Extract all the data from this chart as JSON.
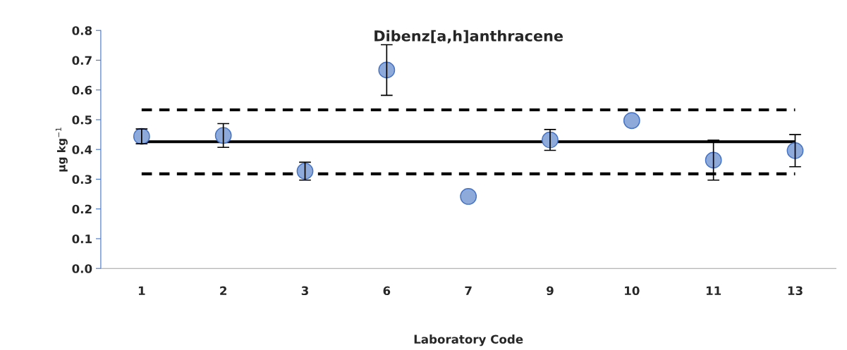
{
  "chart_data": {
    "type": "scatter",
    "title": "Dibenz[a,h]anthracene",
    "xlabel": "Laboratory Code",
    "ylabel": "μg kg$^{−1}$",
    "categories": [
      "1",
      "2",
      "3",
      "6",
      "7",
      "9",
      "10",
      "11",
      "13"
    ],
    "series": [
      {
        "color": "#8eaadb",
        "values": [
          0.444,
          0.447,
          0.327,
          0.667,
          0.242,
          0.432,
          0.497,
          0.364,
          0.396
        ],
        "errors": [
          0.025,
          0.04,
          0.03,
          0.085,
          null,
          0.035,
          null,
          0.067,
          0.054
        ]
      }
    ],
    "ylim": [
      0,
      0.8
    ],
    "yticks": [
      {
        "value": 0,
        "label": "0.0"
      },
      0.1,
      0.2,
      0.3,
      0.4,
      0.5,
      0.6,
      0.7,
      0.8
    ],
    "marker": "circle",
    "grid": false,
    "legend": false,
    "ref_lines": [
      {
        "axis": "y",
        "value": 0.533,
        "color": "#000000",
        "line_style": "dashed"
      },
      {
        "axis": "y",
        "value": 0.426,
        "color": "#000000",
        "line_style": "solid"
      },
      {
        "axis": "y",
        "value": 0.318,
        "color": "#000000",
        "line_style": "dashed"
      }
    ]
  }
}
